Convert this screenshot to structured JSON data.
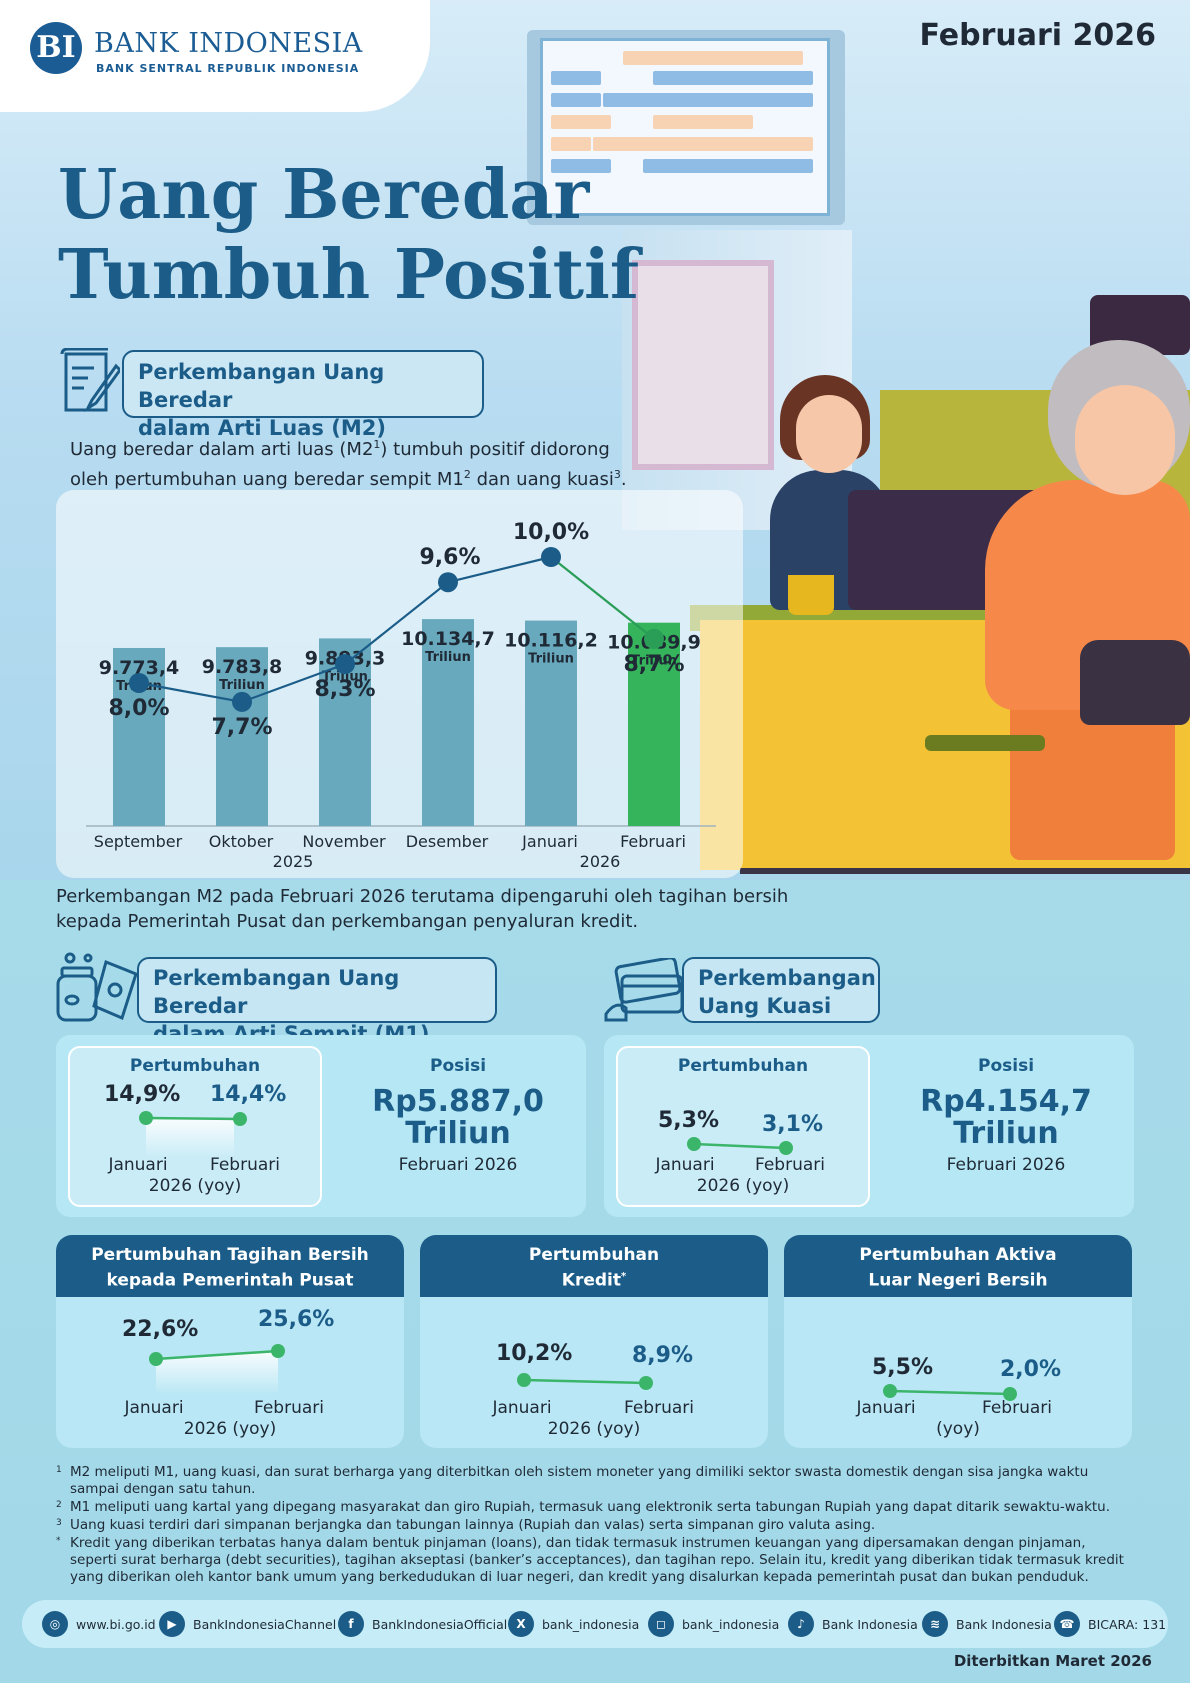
{
  "header": {
    "logo_mark": "BI",
    "bank_name": "BANK INDONESIA",
    "bank_tagline": "BANK SENTRAL REPUBLIK INDONESIA",
    "period": "Februari 2026"
  },
  "headline": {
    "line1": "Uang Beredar",
    "line2": "Tumbuh Positif"
  },
  "m2_section": {
    "title_line1": "Perkembangan Uang Beredar",
    "title_line2": "dalam Arti Luas (M2)",
    "intro_a": "Uang beredar dalam arti luas (M2",
    "intro_sup1": "1",
    "intro_b": ") tumbuh positif didorong",
    "intro_c": "oleh pertumbuhan uang beredar sempit M1",
    "intro_sup2": "2",
    "intro_d": " dan uang kuasi",
    "intro_sup3": "3",
    "intro_e": ".",
    "footer_line1": "Perkembangan M2 pada Februari 2026 terutama dipengaruhi oleh tagihan bersih",
    "footer_line2": "kepada Pemerintah Pusat dan perkembangan penyaluran kredit."
  },
  "chart_data": {
    "type": "bar",
    "categories": [
      "September",
      "Oktober",
      "November",
      "Desember",
      "Januari",
      "Februari"
    ],
    "year_labels": [
      "2025",
      "2026"
    ],
    "bar_unit": "Triliun",
    "series": [
      {
        "values": [
          9773.4,
          9783.8,
          9893.3,
          10134.7,
          10116.2,
          10089.9
        ],
        "labels": [
          "9.773,4",
          "9.783,8",
          "9.893,3",
          "10.134,7",
          "10.116,2",
          "10.089,9"
        ]
      },
      {
        "values": [
          8.0,
          7.7,
          8.3,
          9.6,
          10.0,
          8.7
        ],
        "labels": [
          "8,0%",
          "7,7%",
          "8,3%",
          "9,6%",
          "10,0%",
          "8,7%"
        ]
      }
    ],
    "colors": {
      "bar": "#68a9bd",
      "bar_highlight": "#35b45b",
      "line": "#1b5d88",
      "line_highlight": "#2a9d57"
    }
  },
  "m1_section": {
    "title_line1": "Perkembangan Uang Beredar",
    "title_line2": "dalam Arti Sempit (M1)",
    "growth_label": "Pertumbuhan",
    "growth_from": "14,9%",
    "growth_to": "14,4%",
    "month_from": "Januari",
    "month_to": "Februari",
    "period_note": "2026 (yoy)",
    "position_label": "Posisi",
    "position_value": "Rp5.887,0",
    "position_unit": "Triliun",
    "position_period": "Februari 2026"
  },
  "kuasi_section": {
    "title_line1": "Perkembangan",
    "title_line2": "Uang Kuasi",
    "growth_label": "Pertumbuhan",
    "growth_from": "5,3%",
    "growth_to": "3,1%",
    "month_from": "Januari",
    "month_to": "Februari",
    "period_note": "2026 (yoy)",
    "position_label": "Posisi",
    "position_value": "Rp4.154,7",
    "position_unit": "Triliun",
    "position_period": "Februari 2026"
  },
  "drivers": [
    {
      "title_line1": "Pertumbuhan Tagihan Bersih",
      "title_line2": "kepada Pemerintah Pusat",
      "title_sup": "",
      "from": "22,6%",
      "to": "25,6%",
      "month_from": "Januari",
      "month_to": "Februari",
      "period_note": "2026 (yoy)"
    },
    {
      "title_line1": "Pertumbuhan",
      "title_line2": "Kredit",
      "title_sup": "*",
      "from": "10,2%",
      "to": "8,9%",
      "month_from": "Januari",
      "month_to": "Februari",
      "period_note": "2026 (yoy)"
    },
    {
      "title_line1": "Pertumbuhan Aktiva",
      "title_line2": "Luar Negeri Bersih",
      "title_sup": "",
      "from": "5,5%",
      "to": "2,0%",
      "month_from": "Januari",
      "month_to": "Februari",
      "period_note": "(yoy)"
    }
  ],
  "footnotes": [
    {
      "mark": "1",
      "text": "M2 meliputi M1, uang kuasi, dan surat berharga yang diterbitkan oleh sistem moneter yang dimiliki sektor swasta domestik dengan sisa jangka waktu sampai dengan satu tahun."
    },
    {
      "mark": "2",
      "text": "M1 meliputi uang kartal yang dipegang masyarakat dan giro Rupiah, termasuk uang elektronik serta tabungan Rupiah yang dapat ditarik sewaktu-waktu."
    },
    {
      "mark": "3",
      "text": "Uang kuasi terdiri dari simpanan berjangka dan tabungan lainnya (Rupiah dan valas) serta simpanan giro valuta asing."
    },
    {
      "mark": "*",
      "text": "Kredit yang diberikan terbatas hanya dalam bentuk pinjaman (loans), dan tidak termasuk instrumen keuangan yang dipersamakan dengan pinjaman, seperti surat berharga (debt securities), tagihan akseptasi (banker’s acceptances), dan tagihan repo. Selain itu, kredit yang diberikan tidak termasuk kredit yang diberikan oleh kantor bank umum yang berkedudukan di luar negeri, dan kredit yang disalurkan kepada pemerintah pusat dan bukan penduduk."
    }
  ],
  "social": [
    {
      "icon": "globe-icon",
      "glyph": "◎",
      "label": "www.bi.go.id"
    },
    {
      "icon": "youtube-icon",
      "glyph": "▶",
      "label": "BankIndonesiaChannel"
    },
    {
      "icon": "facebook-icon",
      "glyph": "f",
      "label": "BankIndonesiaOfficial"
    },
    {
      "icon": "x-icon",
      "glyph": "X",
      "label": "bank_indonesia"
    },
    {
      "icon": "instagram-icon",
      "glyph": "◻",
      "label": "bank_indonesia"
    },
    {
      "icon": "tiktok-icon",
      "glyph": "♪",
      "label": "Bank Indonesia"
    },
    {
      "icon": "spotify-icon",
      "glyph": "≋",
      "label": "Bank Indonesia"
    },
    {
      "icon": "bicara-icon",
      "glyph": "☎",
      "label": "BICARA: 131"
    }
  ],
  "published": "Diterbitkan Maret 2026"
}
